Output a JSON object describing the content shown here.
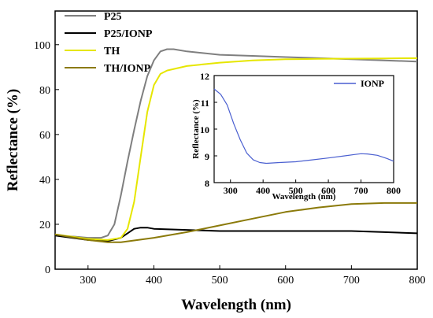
{
  "chart_data": [
    {
      "type": "line",
      "xlabel": "Wavelength (nm)",
      "ylabel": "Reflectance (%)",
      "xlim": [
        250,
        800
      ],
      "ylim": [
        0,
        115
      ],
      "xticks": [
        300,
        400,
        500,
        600,
        700,
        800
      ],
      "yticks": [
        0,
        20,
        40,
        60,
        80,
        100
      ],
      "legend_position": "top-left",
      "series": [
        {
          "name": "P25",
          "color": "#7f7f7f",
          "x": [
            250,
            280,
            300,
            320,
            330,
            340,
            350,
            360,
            370,
            380,
            390,
            400,
            410,
            420,
            430,
            450,
            500,
            550,
            600,
            650,
            700,
            750,
            800
          ],
          "y": [
            15,
            14.5,
            14,
            14,
            15,
            20,
            33,
            48,
            62,
            75,
            86,
            93,
            97,
            98,
            98,
            97,
            95.5,
            95,
            94.5,
            94,
            93.5,
            93,
            92.5
          ]
        },
        {
          "name": "P25/IONP",
          "color": "#000000",
          "x": [
            250,
            300,
            330,
            350,
            360,
            370,
            380,
            390,
            400,
            450,
            500,
            550,
            600,
            650,
            700,
            750,
            800
          ],
          "y": [
            15,
            13,
            12.5,
            14,
            16,
            18,
            18.5,
            18.5,
            18,
            17.5,
            17,
            17,
            17,
            17,
            17,
            16.5,
            16
          ]
        },
        {
          "name": "TH",
          "color": "#e6e600",
          "x": [
            250,
            300,
            330,
            350,
            360,
            370,
            380,
            390,
            400,
            410,
            420,
            450,
            500,
            550,
            600,
            650,
            700,
            750,
            800
          ],
          "y": [
            15.5,
            13.5,
            13,
            14,
            18,
            30,
            50,
            70,
            82,
            87,
            88.5,
            90.5,
            92,
            93,
            93.5,
            93.7,
            93.8,
            93.9,
            94
          ]
        },
        {
          "name": "TH/IONP",
          "color": "#8b7a0a",
          "x": [
            250,
            300,
            330,
            350,
            400,
            450,
            500,
            550,
            600,
            650,
            700,
            750,
            800
          ],
          "y": [
            15.5,
            13,
            12,
            12,
            14,
            16.5,
            19.5,
            22.5,
            25.5,
            27.5,
            29,
            29.5,
            29.5
          ]
        }
      ]
    },
    {
      "type": "line",
      "xlabel": "Wavelength (nm)",
      "ylabel": "Reflectance (%)",
      "xlim": [
        250,
        800
      ],
      "ylim": [
        8,
        12
      ],
      "xticks": [
        300,
        400,
        500,
        600,
        700,
        800
      ],
      "yticks": [
        8,
        9,
        10,
        11,
        12
      ],
      "legend_position": "top-right",
      "series": [
        {
          "name": "IONP",
          "color": "#4a5fd0",
          "x": [
            250,
            270,
            290,
            310,
            330,
            350,
            370,
            390,
            410,
            450,
            500,
            550,
            600,
            650,
            680,
            700,
            720,
            750,
            780,
            800
          ],
          "y": [
            11.5,
            11.3,
            10.9,
            10.2,
            9.6,
            9.1,
            8.85,
            8.75,
            8.72,
            8.75,
            8.78,
            8.85,
            8.92,
            9.0,
            9.05,
            9.08,
            9.07,
            9.02,
            8.9,
            8.8
          ]
        }
      ]
    }
  ]
}
